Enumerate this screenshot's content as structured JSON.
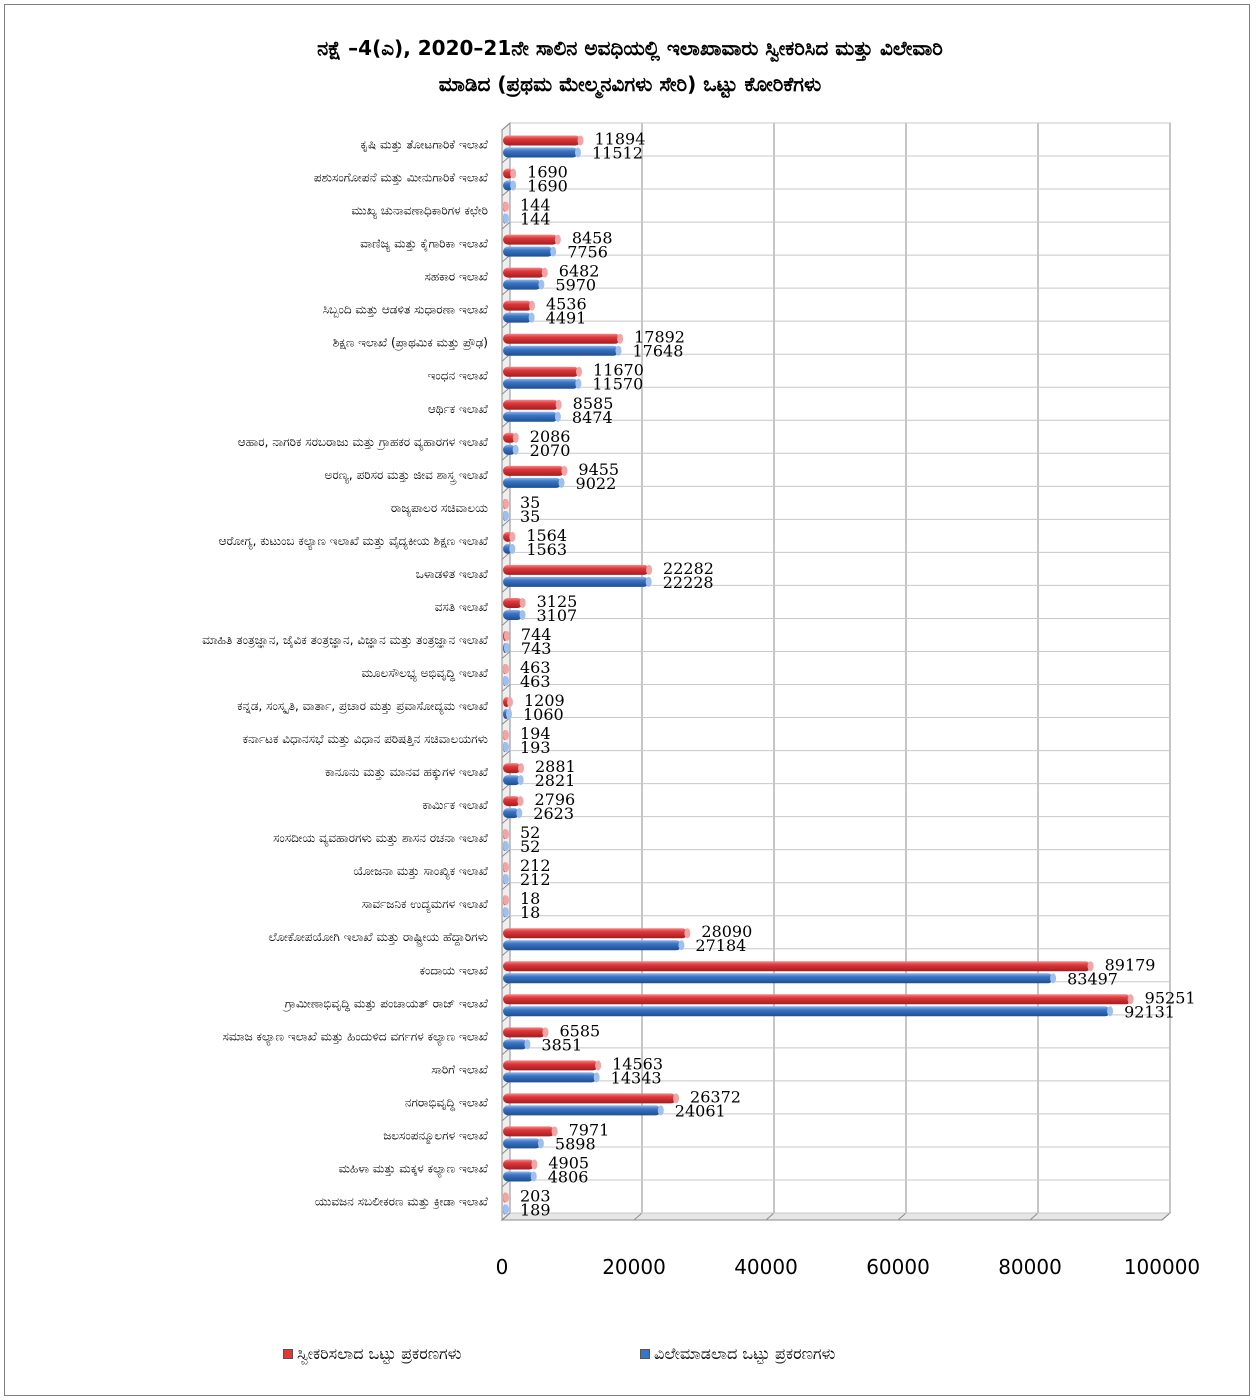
{
  "title_line1": "ನಕ್ಷೆ –4(ಎ),  2020–21ನೇ ಸಾಲಿನ ಅವಧಿಯಲ್ಲಿ ಇಲಾಖಾವಾರು ಸ್ವೀಕರಿಸಿದ ಮತ್ತು ವಿಲೇವಾರಿ",
  "title_line2": "ಮಾಡಿದ (ಪ್ರಥಮ ಮೇಲ್ಮನವಿಗಳು ಸೇರಿ) ಒಟ್ಟು ಕೋರಿಕೆಗಳು",
  "colors": {
    "received": "#e0373a",
    "disposed": "#3a75c4",
    "grid": "#999999",
    "wall": "#ffffff"
  },
  "chart_data": {
    "type": "bar",
    "orientation": "horizontal",
    "title": "ನಕ್ಷೆ –4(ಎ),  2020–21ನೇ ಸಾಲಿನ ಅವಧಿಯಲ್ಲಿ ಇಲಾಖಾವಾರು ಸ್ವೀಕರಿಸಿದ ಮತ್ತು ವಿಲೇವಾರಿ ಮಾಡಿದ (ಪ್ರಥಮ ಮೇಲ್ಮನವಿಗಳು ಸೇರಿ) ಒಟ್ಟು ಕೋರಿಕೆಗಳು",
    "xlabel": "",
    "ylabel": "",
    "xlim": [
      0,
      100000
    ],
    "x_ticks": [
      "0",
      "20000",
      "40000",
      "60000",
      "80000",
      "100000"
    ],
    "grid": true,
    "legend_position": "bottom",
    "categories": [
      "ಕೃಷಿ ಮತ್ತು ತೋಟಗಾರಿಕೆ ಇಲಾಖೆ",
      "ಪಶುಸಂಗೋಪನೆ ಮತ್ತು ಮೀನುಗಾರಿಕೆ ಇಲಾಖೆ",
      "ಮುಖ್ಯ ಚುನಾವಣಾಧಿಕಾರಿಗಳ ಕಛೇರಿ",
      "ವಾಣಿಜ್ಯ ಮತ್ತು ಕೈಗಾರಿಕಾ ಇಲಾಖೆ",
      "ಸಹಕಾರ ಇಲಾಖೆ",
      "ಸಿಬ್ಬಂದಿ ಮತ್ತು ಆಡಳಿತ ಸುಧಾರಣಾ ಇಲಾಖೆ",
      "ಶಿಕ್ಷಣ ಇಲಾಖೆ (ಪ್ರಾಥಮಿಕ ಮತ್ತು ಪ್ರೌಢ)",
      "ಇಂಧನ ಇಲಾಖೆ",
      "ಆರ್ಥಿಕ ಇಲಾಖೆ",
      "ಆಹಾರ, ನಾಗರಿಕ ಸರಬರಾಜು ಮತ್ತು ಗ್ರಾಹಕರ ವ್ಯಹಾರಗಳ ಇಲಾಖೆ",
      "ಅರಣ್ಯ, ಪರಿಸರ  ಮತ್ತು ಜೀವ ಶಾಸ್ತ್ರ ಇಲಾಖೆ",
      "ರಾಜ್ಯಪಾಲರ ಸಚಿವಾಲಯ",
      "ಆರೋಗ್ಯ, ಕುಟುಂಬ ಕಲ್ಯಾಣ ಇಲಾಖೆ ಮತ್ತು ವೈದ್ಯಕೀಯ ಶಿಕ್ಷಣ ಇಲಾಖೆ",
      "ಒಳಾಡಳಿತ ಇಲಾಖೆ",
      "ವಸತಿ ಇಲಾಖೆ",
      "ಮಾಹಿತಿ ತಂತ್ರಜ್ಞಾನ, ಜೈವಿಕ ತಂತ್ರಜ್ಞಾನ, ವಿಜ್ಞಾನ ಮತ್ತು ತಂತ್ರಜ್ಞಾನ ಇಲಾಖೆ",
      "ಮೂಲಸೌಲಭ್ಯ ಅಭಿವೃದ್ಧಿ ಇಲಾಖೆ",
      "ಕನ್ನಡ, ಸಂಸ್ಕೃತಿ, ವಾರ್ತಾ, ಪ್ರಚಾರ ಮತ್ತು ಪ್ರವಾಸೋದ್ಯಮ ಇಲಾಖೆ",
      "ಕರ್ನಾಟಕ ವಿಧಾನಸಭೆ ಮತ್ತು ವಿಧಾನ ಪರಿಷತ್ತಿನ ಸಚಿವಾಲಯಗಳು",
      "ಕಾನೂನು ಮತ್ತು ಮಾನವ ಹಕ್ಕುಗಳ ಇಲಾಖೆ",
      "ಕಾರ್ಮಿಕ ಇಲಾಖೆ",
      "ಸಂಸದೀಯ ವ್ಯವಹಾರಗಳು ಮತ್ತು ಶಾಸನ ರಚನಾ ಇಲಾಖೆ",
      "ಯೋಜನಾ ಮತ್ತು ಸಾಂಖ್ಯಿಕ ಇಲಾಖೆ",
      "ಸಾರ್ವಜನಿಕ ಉದ್ಯಮಗಳ ಇಲಾಖೆ",
      "ಲೋಕೋಪಯೋಗಿ ಇಲಾಖೆ ಮತ್ತು ರಾಷ್ಟ್ರೀಯ ಹೆದ್ದಾರಿಗಳು",
      "ಕಂದಾಯ ಇಲಾಖೆ",
      "ಗ್ರಾಮೀಣಾಭಿವೃದ್ಧಿ ಮತ್ತು ಪಂಚಾಯತ್ ರಾಜ್ ಇಲಾಖೆ",
      "ಸಮಾಜ ಕಲ್ಯಾಣ ಇಲಾಖೆ ಮತ್ತು ಹಿಂದುಳಿದ ವರ್ಗಗಳ ಕಲ್ಯಾಣ ಇಲಾಖೆ",
      "ಸಾರಿಗೆ ಇಲಾಖೆ",
      "ನಗರಾಭಿವೃದ್ಧಿ ಇಲಾಖೆ",
      "ಜಲಸಂಪನ್ಮೂಲಗಳ ಇಲಾಖೆ",
      "ಮಹಿಳಾ ಮತ್ತು ಮಕ್ಕಳ ಕಲ್ಯಾಣ ಇಲಾಖೆ",
      "ಯುವಜನ ಸಬಲೀಕರಣ ಮತ್ತು ಕ್ರೀಡಾ ಇಲಾಖೆ"
    ],
    "series": [
      {
        "name": "ಸ್ವೀಕರಿಸಲಾದ ಒಟ್ಟು ಪ್ರಕರಣಗಳು",
        "color": "#e0373a",
        "values": [
          11894,
          1690,
          144,
          8458,
          6482,
          4536,
          17892,
          11670,
          8585,
          2086,
          9455,
          35,
          1564,
          22282,
          3125,
          744,
          463,
          1209,
          194,
          2881,
          2796,
          52,
          212,
          18,
          28090,
          89179,
          95251,
          6585,
          14563,
          26372,
          7971,
          4905,
          203
        ]
      },
      {
        "name": "ವಿಲೇಮಾಡಲಾದ ಒಟ್ಟು ಪ್ರಕರಣಗಳು",
        "color": "#3a75c4",
        "values": [
          11512,
          1690,
          144,
          7756,
          5970,
          4491,
          17648,
          11570,
          8474,
          2070,
          9022,
          35,
          1563,
          22228,
          3107,
          743,
          463,
          1060,
          193,
          2821,
          2623,
          52,
          212,
          18,
          27184,
          83497,
          92131,
          3851,
          14343,
          24061,
          5898,
          4806,
          189
        ]
      }
    ]
  }
}
